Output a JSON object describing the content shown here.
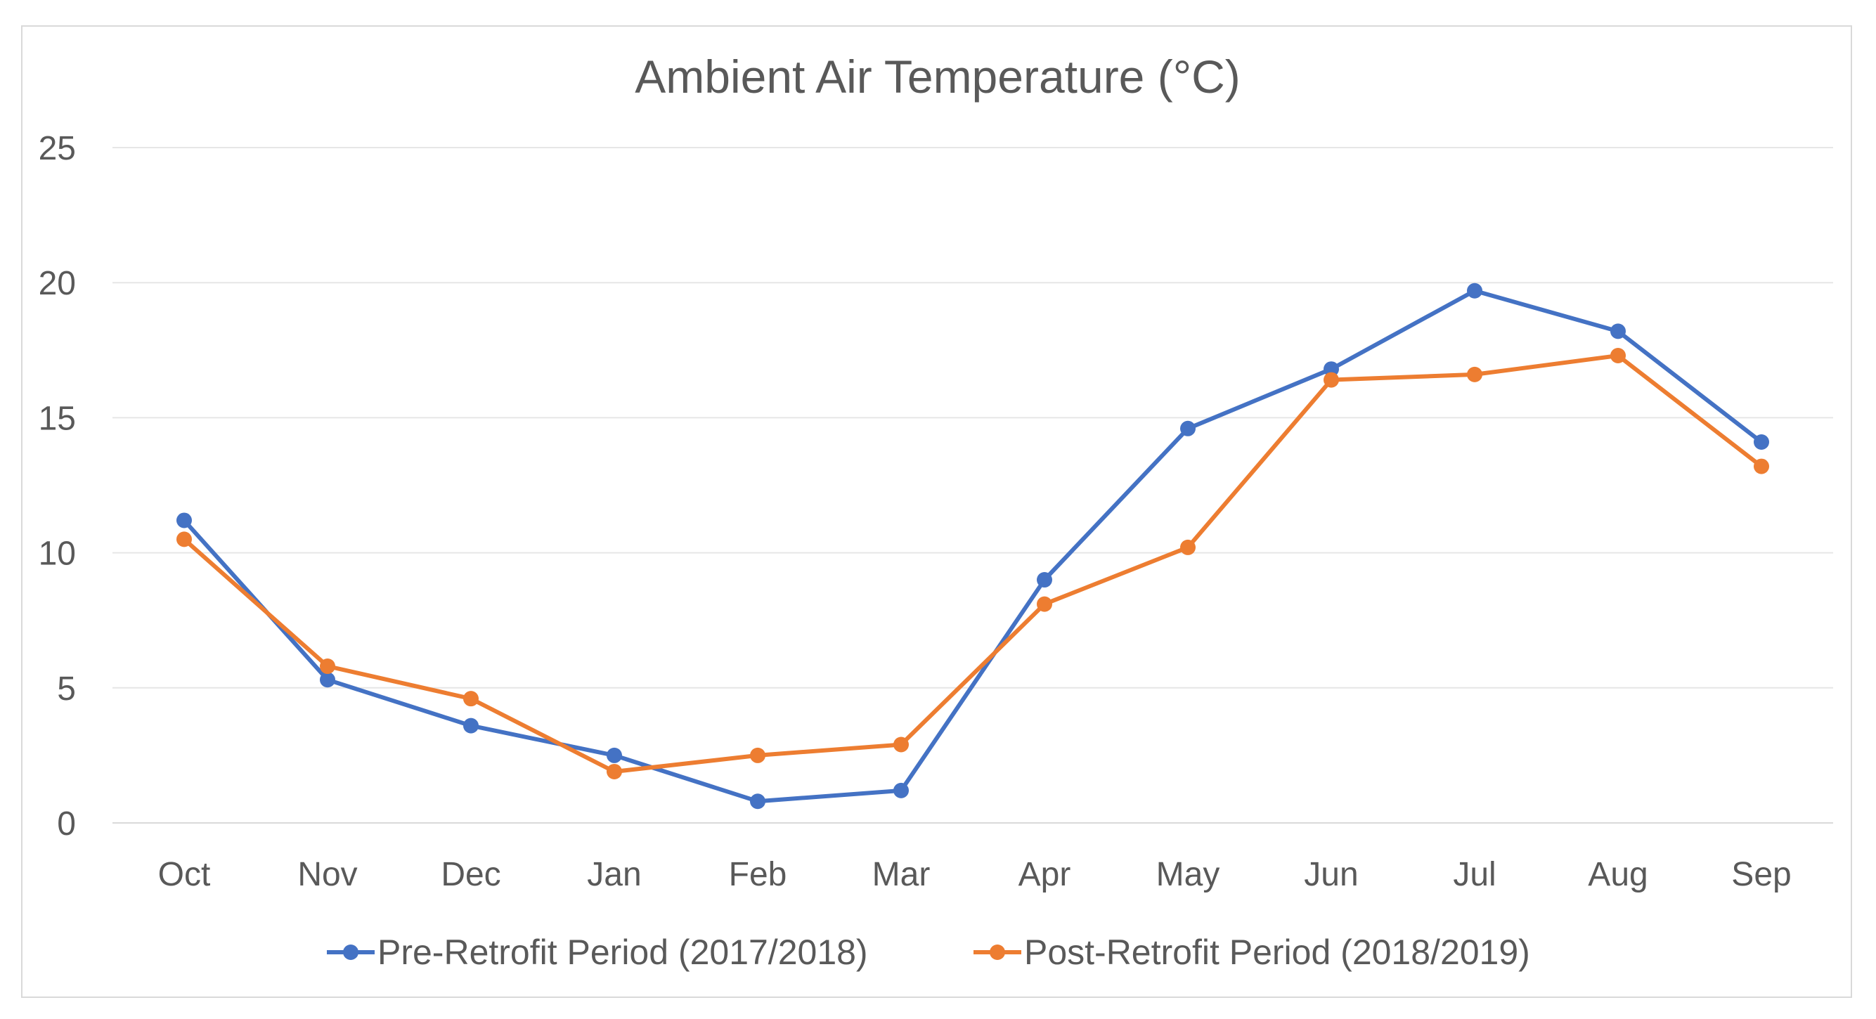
{
  "chart_data": {
    "type": "line",
    "title": "Ambient Air Temperature (°C)",
    "xlabel": "",
    "ylabel": "",
    "categories": [
      "Oct",
      "Nov",
      "Dec",
      "Jan",
      "Feb",
      "Mar",
      "Apr",
      "May",
      "Jun",
      "Jul",
      "Aug",
      "Sep"
    ],
    "y_ticks": [
      "0",
      "5",
      "10",
      "15",
      "20",
      "25"
    ],
    "ylim": [
      0,
      25
    ],
    "grid": true,
    "legend_position": "bottom",
    "series": [
      {
        "name": "Pre-Retrofit Period (2017/2018)",
        "color": "#4472c4",
        "values": [
          11.2,
          5.3,
          3.6,
          2.5,
          0.8,
          1.2,
          9.0,
          14.6,
          16.8,
          19.7,
          18.2,
          14.1
        ]
      },
      {
        "name": "Post-Retrofit Period (2018/2019)",
        "color": "#ed7d31",
        "values": [
          10.5,
          5.8,
          4.6,
          1.9,
          2.5,
          2.9,
          8.1,
          10.2,
          16.4,
          16.6,
          17.3,
          13.2
        ]
      }
    ]
  }
}
